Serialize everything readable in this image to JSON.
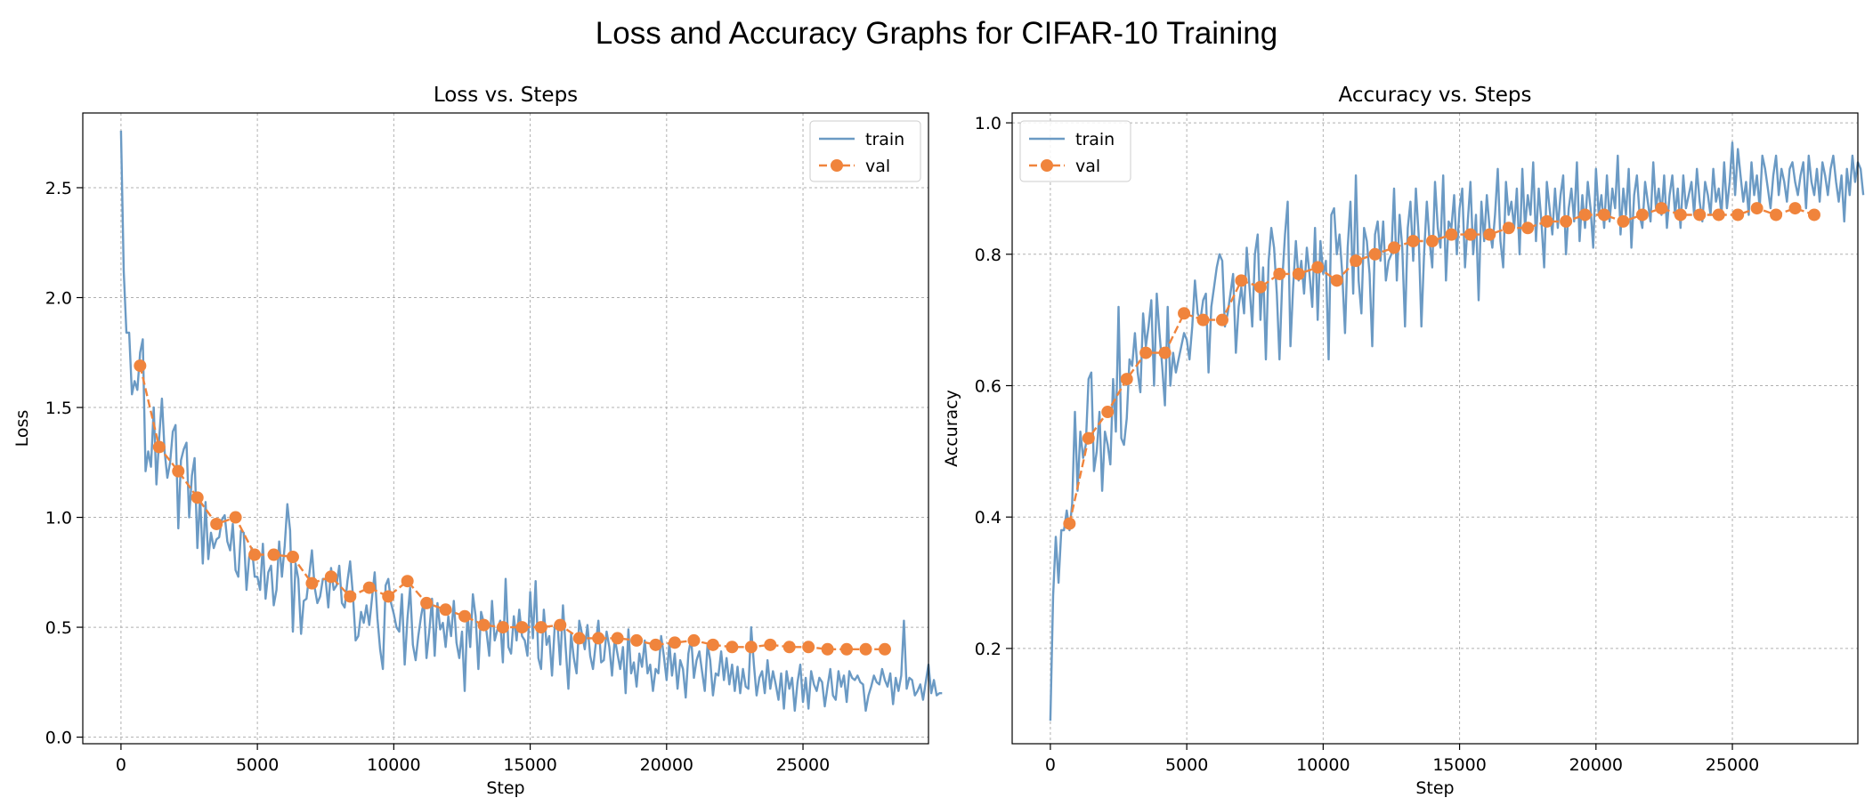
{
  "figure": {
    "suptitle": "Loss and Accuracy Graphs for CIFAR-10 Training"
  },
  "colors": {
    "train": "#6b9ac4",
    "val": "#f0843c",
    "grid": "#b0b0b0"
  },
  "chart_data": [
    {
      "type": "line",
      "title": "Loss vs. Steps",
      "xlabel": "Step",
      "ylabel": "Loss",
      "xlim": [
        -1400,
        29600
      ],
      "ylim": [
        -0.03,
        2.84
      ],
      "xticks": [
        0,
        5000,
        10000,
        15000,
        20000,
        25000
      ],
      "yticks": [
        0.0,
        0.5,
        1.0,
        1.5,
        2.0,
        2.5
      ],
      "ytick_labels": [
        "0.0",
        "0.5",
        "1.0",
        "1.5",
        "2.0",
        "2.5"
      ],
      "grid": true,
      "legend": "upper right",
      "series": [
        {
          "name": "train",
          "style": "solid",
          "x_start": 0,
          "x_step": 100,
          "values": [
            2.76,
            2.12,
            1.84,
            1.84,
            1.56,
            1.62,
            1.58,
            1.75,
            1.81,
            1.21,
            1.3,
            1.23,
            1.5,
            1.15,
            1.36,
            1.54,
            1.3,
            1.18,
            1.25,
            1.39,
            1.42,
            0.95,
            1.26,
            1.31,
            1.34,
            1.0,
            1.19,
            1.27,
            0.86,
            1.1,
            0.79,
            1.07,
            0.81,
            0.93,
            0.86,
            0.9,
            0.91,
            0.99,
            1.01,
            0.89,
            0.85,
            0.97,
            0.76,
            0.73,
            0.94,
            0.93,
            0.67,
            0.82,
            0.86,
            0.73,
            0.73,
            0.67,
            0.88,
            0.63,
            0.75,
            0.78,
            0.6,
            0.67,
            0.89,
            0.73,
            0.87,
            1.06,
            0.94,
            0.48,
            0.79,
            0.72,
            0.47,
            0.62,
            0.63,
            0.74,
            0.85,
            0.68,
            0.61,
            0.64,
            0.72,
            0.72,
            0.59,
            0.77,
            0.67,
            0.69,
            0.78,
            0.61,
            0.59,
            0.71,
            0.8,
            0.65,
            0.44,
            0.46,
            0.57,
            0.52,
            0.6,
            0.51,
            0.63,
            0.75,
            0.54,
            0.4,
            0.31,
            0.69,
            0.72,
            0.61,
            0.56,
            0.5,
            0.48,
            0.65,
            0.33,
            0.54,
            0.68,
            0.42,
            0.35,
            0.46,
            0.55,
            0.62,
            0.36,
            0.48,
            0.63,
            0.37,
            0.61,
            0.49,
            0.52,
            0.41,
            0.55,
            0.46,
            0.62,
            0.43,
            0.36,
            0.48,
            0.21,
            0.57,
            0.41,
            0.65,
            0.55,
            0.31,
            0.57,
            0.52,
            0.48,
            0.37,
            0.62,
            0.44,
            0.49,
            0.53,
            0.34,
            0.72,
            0.41,
            0.38,
            0.55,
            0.44,
            0.58,
            0.46,
            0.44,
            0.37,
            0.66,
            0.45,
            0.71,
            0.36,
            0.31,
            0.58,
            0.42,
            0.46,
            0.28,
            0.51,
            0.52,
            0.33,
            0.6,
            0.41,
            0.22,
            0.47,
            0.36,
            0.29,
            0.53,
            0.47,
            0.4,
            0.51,
            0.37,
            0.31,
            0.42,
            0.53,
            0.34,
            0.35,
            0.48,
            0.41,
            0.28,
            0.45,
            0.38,
            0.31,
            0.41,
            0.2,
            0.49,
            0.29,
            0.34,
            0.23,
            0.38,
            0.32,
            0.44,
            0.29,
            0.33,
            0.21,
            0.31,
            0.29,
            0.46,
            0.37,
            0.26,
            0.43,
            0.28,
            0.38,
            0.22,
            0.35,
            0.31,
            0.18,
            0.38,
            0.45,
            0.27,
            0.35,
            0.39,
            0.3,
            0.21,
            0.42,
            0.35,
            0.19,
            0.29,
            0.28,
            0.39,
            0.26,
            0.36,
            0.24,
            0.33,
            0.21,
            0.32,
            0.2,
            0.31,
            0.23,
            0.22,
            0.5,
            0.33,
            0.19,
            0.27,
            0.3,
            0.2,
            0.35,
            0.22,
            0.3,
            0.24,
            0.17,
            0.29,
            0.13,
            0.3,
            0.22,
            0.27,
            0.12,
            0.25,
            0.33,
            0.16,
            0.27,
            0.13,
            0.3,
            0.24,
            0.21,
            0.27,
            0.25,
            0.14,
            0.23,
            0.31,
            0.19,
            0.17,
            0.3,
            0.23,
            0.28,
            0.16,
            0.3,
            0.27,
            0.26,
            0.28,
            0.25,
            0.24,
            0.12,
            0.19,
            0.23,
            0.28,
            0.25,
            0.24,
            0.31,
            0.26,
            0.23,
            0.29,
            0.15,
            0.27,
            0.21,
            0.28,
            0.53,
            0.22,
            0.27,
            0.26,
            0.19,
            0.21,
            0.24,
            0.17,
            0.25,
            0.33,
            0.2,
            0.26,
            0.19,
            0.2,
            0.2
          ]
        },
        {
          "name": "val",
          "style": "dashed-marker",
          "x": [
            700,
            1400,
            2100,
            2800,
            3500,
            4200,
            4900,
            5600,
            6300,
            7000,
            7700,
            8400,
            9100,
            9800,
            10500,
            11200,
            11900,
            12600,
            13300,
            14000,
            14700,
            15400,
            16100,
            16800,
            17500,
            18200,
            18900,
            19600,
            20300,
            21000,
            21700,
            22400,
            23100,
            23800,
            24500,
            25200,
            25900,
            26600,
            27300,
            28000
          ],
          "values": [
            1.69,
            1.32,
            1.21,
            1.09,
            0.97,
            1.0,
            0.83,
            0.83,
            0.82,
            0.7,
            0.73,
            0.64,
            0.68,
            0.64,
            0.71,
            0.61,
            0.58,
            0.55,
            0.51,
            0.5,
            0.5,
            0.5,
            0.51,
            0.45,
            0.45,
            0.45,
            0.44,
            0.42,
            0.43,
            0.44,
            0.42,
            0.41,
            0.41,
            0.42,
            0.41,
            0.41,
            0.4,
            0.4,
            0.4,
            0.4
          ]
        }
      ]
    },
    {
      "type": "line",
      "title": "Accuracy vs. Steps",
      "xlabel": "Step",
      "ylabel": "Accuracy",
      "xlim": [
        -1400,
        29600
      ],
      "ylim": [
        0.055,
        1.015
      ],
      "xticks": [
        0,
        5000,
        10000,
        15000,
        20000,
        25000
      ],
      "yticks": [
        0.2,
        0.4,
        0.6,
        0.8,
        1.0
      ],
      "ytick_labels": [
        "0.2",
        "0.4",
        "0.6",
        "0.8",
        "1.0"
      ],
      "grid": true,
      "legend": "upper left",
      "series": [
        {
          "name": "train",
          "style": "solid",
          "x_start": 0,
          "x_step": 100,
          "values": [
            0.09,
            0.28,
            0.37,
            0.3,
            0.38,
            0.38,
            0.41,
            0.38,
            0.42,
            0.56,
            0.44,
            0.53,
            0.49,
            0.51,
            0.61,
            0.62,
            0.47,
            0.5,
            0.56,
            0.44,
            0.53,
            0.51,
            0.48,
            0.61,
            0.53,
            0.72,
            0.52,
            0.51,
            0.55,
            0.64,
            0.63,
            0.68,
            0.62,
            0.59,
            0.71,
            0.66,
            0.69,
            0.73,
            0.6,
            0.74,
            0.68,
            0.63,
            0.57,
            0.72,
            0.6,
            0.65,
            0.62,
            0.64,
            0.66,
            0.68,
            0.67,
            0.64,
            0.69,
            0.76,
            0.71,
            0.7,
            0.73,
            0.74,
            0.62,
            0.72,
            0.75,
            0.78,
            0.8,
            0.79,
            0.69,
            0.71,
            0.74,
            0.77,
            0.65,
            0.72,
            0.75,
            0.71,
            0.81,
            0.75,
            0.69,
            0.8,
            0.83,
            0.7,
            0.78,
            0.64,
            0.79,
            0.84,
            0.81,
            0.74,
            0.64,
            0.76,
            0.83,
            0.88,
            0.66,
            0.75,
            0.82,
            0.76,
            0.79,
            0.74,
            0.81,
            0.77,
            0.72,
            0.84,
            0.7,
            0.82,
            0.77,
            0.79,
            0.64,
            0.86,
            0.87,
            0.8,
            0.83,
            0.77,
            0.68,
            0.81,
            0.88,
            0.74,
            0.92,
            0.76,
            0.71,
            0.84,
            0.82,
            0.77,
            0.66,
            0.83,
            0.85,
            0.79,
            0.85,
            0.76,
            0.79,
            0.8,
            0.9,
            0.76,
            0.86,
            0.81,
            0.69,
            0.84,
            0.88,
            0.79,
            0.9,
            0.83,
            0.69,
            0.8,
            0.88,
            0.82,
            0.78,
            0.91,
            0.84,
            0.81,
            0.92,
            0.76,
            0.85,
            0.84,
            0.89,
            0.8,
            0.87,
            0.9,
            0.78,
            0.85,
            0.91,
            0.8,
            0.86,
            0.73,
            0.88,
            0.82,
            0.89,
            0.84,
            0.81,
            0.86,
            0.93,
            0.82,
            0.78,
            0.91,
            0.86,
            0.88,
            0.84,
            0.9,
            0.8,
            0.93,
            0.84,
            0.89,
            0.86,
            0.94,
            0.82,
            0.9,
            0.85,
            0.78,
            0.91,
            0.87,
            0.83,
            0.9,
            0.84,
            0.89,
            0.92,
            0.8,
            0.87,
            0.9,
            0.85,
            0.94,
            0.82,
            0.89,
            0.84,
            0.91,
            0.87,
            0.81,
            0.93,
            0.86,
            0.89,
            0.84,
            0.92,
            0.85,
            0.9,
            0.87,
            0.95,
            0.83,
            0.9,
            0.86,
            0.93,
            0.81,
            0.89,
            0.92,
            0.86,
            0.84,
            0.91,
            0.88,
            0.85,
            0.94,
            0.87,
            0.9,
            0.86,
            0.92,
            0.84,
            0.89,
            0.92,
            0.86,
            0.9,
            0.84,
            0.92,
            0.87,
            0.89,
            0.91,
            0.86,
            0.93,
            0.88,
            0.85,
            0.91,
            0.89,
            0.86,
            0.93,
            0.88,
            0.9,
            0.86,
            0.94,
            0.87,
            0.91,
            0.97,
            0.89,
            0.96,
            0.92,
            0.88,
            0.91,
            0.86,
            0.94,
            0.89,
            0.92,
            0.87,
            0.95,
            0.93,
            0.9,
            0.87,
            0.92,
            0.95,
            0.89,
            0.93,
            0.91,
            0.88,
            0.93,
            0.94,
            0.91,
            0.89,
            0.92,
            0.94,
            0.87,
            0.95,
            0.91,
            0.89,
            0.93,
            0.88,
            0.94,
            0.92,
            0.89,
            0.93,
            0.95,
            0.91,
            0.88,
            0.92,
            0.85,
            0.93,
            0.89,
            0.95,
            0.91,
            0.94,
            0.93,
            0.89
          ]
        },
        {
          "name": "val",
          "style": "dashed-marker",
          "x": [
            700,
            1400,
            2100,
            2800,
            3500,
            4200,
            4900,
            5600,
            6300,
            7000,
            7700,
            8400,
            9100,
            9800,
            10500,
            11200,
            11900,
            12600,
            13300,
            14000,
            14700,
            15400,
            16100,
            16800,
            17500,
            18200,
            18900,
            19600,
            20300,
            21000,
            21700,
            22400,
            23100,
            23800,
            24500,
            25200,
            25900,
            26600,
            27300,
            28000
          ],
          "values": [
            0.39,
            0.52,
            0.56,
            0.61,
            0.65,
            0.65,
            0.71,
            0.7,
            0.7,
            0.76,
            0.75,
            0.77,
            0.77,
            0.78,
            0.76,
            0.79,
            0.8,
            0.81,
            0.82,
            0.82,
            0.83,
            0.83,
            0.83,
            0.84,
            0.84,
            0.85,
            0.85,
            0.86,
            0.86,
            0.85,
            0.86,
            0.87,
            0.86,
            0.86,
            0.86,
            0.86,
            0.87,
            0.86,
            0.87,
            0.86
          ]
        }
      ]
    }
  ]
}
